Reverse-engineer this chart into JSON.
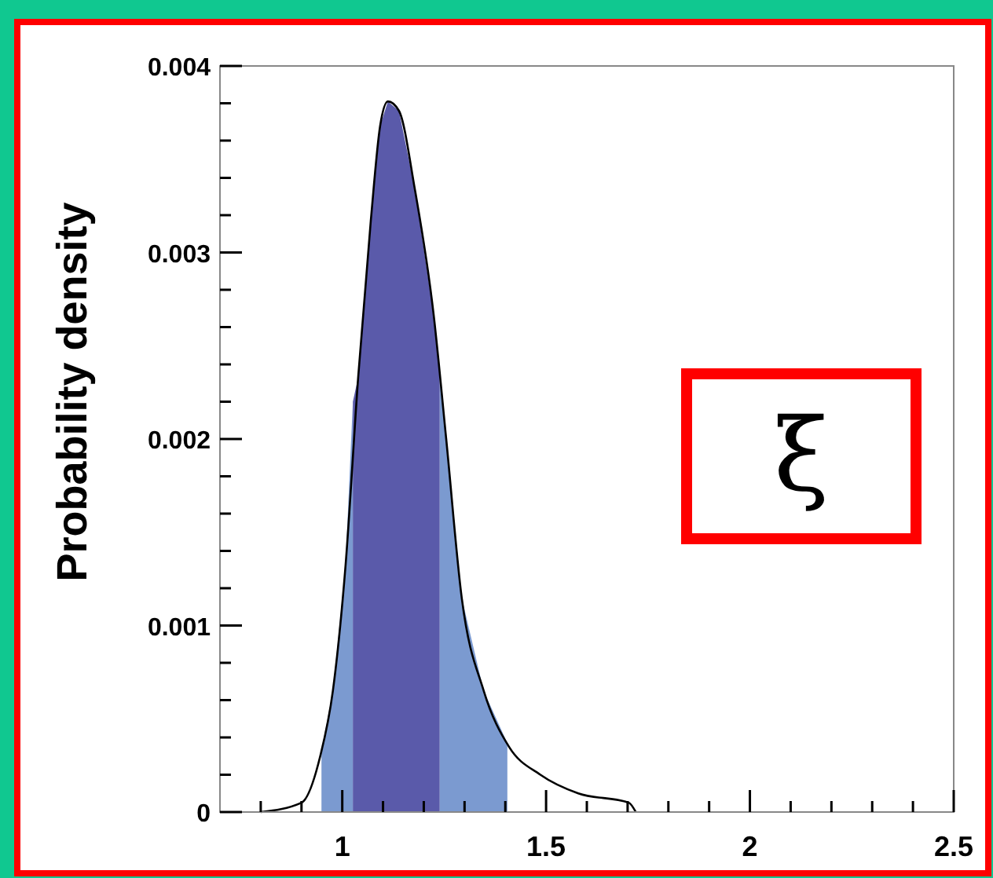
{
  "chart_data": {
    "type": "area",
    "ylabel": "Probability density",
    "annotations": [
      "ξ"
    ],
    "xlim": [
      0.7,
      2.5
    ],
    "ylim": [
      0,
      0.004
    ],
    "xticks": [
      {
        "value": 0.8,
        "label": null
      },
      {
        "value": 0.9,
        "label": null
      },
      1,
      {
        "value": 1.1,
        "label": null
      },
      {
        "value": 1.2,
        "label": null
      },
      {
        "value": 1.3,
        "label": null
      },
      {
        "value": 1.4,
        "label": null
      },
      1.5,
      {
        "value": 1.6,
        "label": null
      },
      {
        "value": 1.7,
        "label": null
      },
      {
        "value": 1.8,
        "label": null
      },
      {
        "value": 1.9,
        "label": null
      },
      2,
      {
        "value": 2.1,
        "label": null
      },
      {
        "value": 2.2,
        "label": null
      },
      {
        "value": 2.3,
        "label": null
      },
      {
        "value": 2.4,
        "label": null
      },
      2.5
    ],
    "yticks": [
      0,
      {
        "value": 0.0002,
        "label": null
      },
      {
        "value": 0.0004,
        "label": null
      },
      {
        "value": 0.0006,
        "label": null
      },
      {
        "value": 0.0008,
        "label": null
      },
      0.001,
      {
        "value": 0.0012,
        "label": null
      },
      {
        "value": 0.0014,
        "label": null
      },
      {
        "value": 0.0016,
        "label": null
      },
      {
        "value": 0.0018,
        "label": null
      },
      0.002,
      {
        "value": 0.0022,
        "label": null
      },
      {
        "value": 0.0024,
        "label": null
      },
      {
        "value": 0.0026,
        "label": null
      },
      {
        "value": 0.0028,
        "label": null
      },
      0.003,
      {
        "value": 0.0032,
        "label": null
      },
      {
        "value": 0.0034,
        "label": null
      },
      {
        "value": 0.0036,
        "label": null
      },
      {
        "value": 0.0038,
        "label": null
      },
      0.004
    ],
    "grid": false,
    "marker": "none",
    "line_style": "solid",
    "series": [
      {
        "color": "#7b9ad0",
        "x": [
          0.949,
          0.977,
          1.008,
          1.026
        ],
        "values": [
          0.00033,
          0.00065,
          0.00132,
          0.0022
        ]
      },
      {
        "color": "#7b9ad0",
        "x": [
          1.239,
          1.255,
          1.293,
          1.347,
          1.405
        ],
        "values": [
          0.00235,
          0.002,
          0.00115,
          0.00065,
          0.00037
        ]
      },
      {
        "color": "#5a5aaa",
        "x": [
          1.026,
          1.039,
          1.07,
          1.093,
          1.112,
          1.139,
          1.178,
          1.224,
          1.239
        ],
        "values": [
          0.0022,
          0.00233,
          0.00317,
          0.00368,
          0.00381,
          0.00376,
          0.00334,
          0.00267,
          0.00235
        ]
      },
      {
        "type": "line",
        "color": "#000000",
        "x": [
          0.8,
          0.9,
          0.946,
          0.977,
          1.008,
          1.039,
          1.07,
          1.093,
          1.112,
          1.139,
          1.178,
          1.224,
          1.255,
          1.293,
          1.347,
          1.409,
          1.486,
          1.579,
          1.703,
          1.72
        ],
        "values": [
          0,
          5e-05,
          0.0003,
          0.00065,
          0.00132,
          0.00233,
          0.00317,
          0.00368,
          0.00381,
          0.00376,
          0.00334,
          0.00267,
          0.002,
          0.00115,
          0.00065,
          0.00035,
          0.0002,
          0.0001,
          5e-05,
          0
        ]
      }
    ]
  }
}
